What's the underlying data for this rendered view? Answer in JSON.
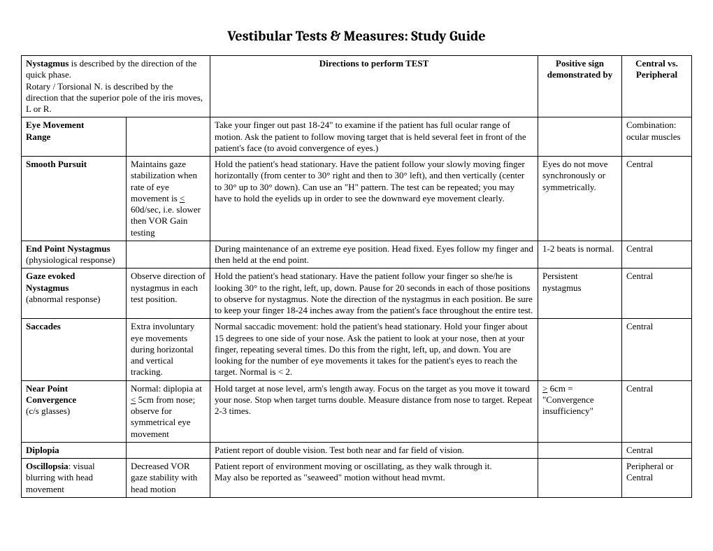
{
  "title": "Vestibular Tests & Measures: Study Guide",
  "header": {
    "nystagmus_desc_1a": "Nystagmus",
    "nystagmus_desc_1b": " is described by the direction of the quick phase.",
    "nystagmus_desc_2": "Rotary / Torsional N. is described by the direction that the superior pole of the iris moves, L or R.",
    "directions": "Directions to perform TEST",
    "positive1": "Positive sign",
    "positive2": "demonstrated by",
    "central1": "Central vs.",
    "central2": "Peripheral"
  },
  "rows": {
    "r1": {
      "name1": "Eye Movement",
      "name2": "Range",
      "desc": "",
      "dir": "Take your finger out past 18-24\" to examine if the patient has full ocular range of motion.  Ask the patient to follow moving target that is held several feet in front of the patient's face (to avoid convergence of eyes.)",
      "pos": "",
      "cp": "Combination: ocular muscles"
    },
    "r2": {
      "name": "Smooth Pursuit",
      "desc1": "Maintains gaze stabilization when rate of eye movement is ",
      "desc_u": "<",
      "desc2": " 60d/sec, i.e. slower then VOR Gain testing",
      "dir": "Hold the patient's head stationary.  Have the patient follow your slowly moving finger horizontally (from center to 30° right and then to 30° left), and then vertically (center to 30° up to 30° down).  Can use an \"H\" pattern. The test can be repeated; you may have to hold the eyelids up in order to see the downward eye movement clearly.",
      "pos": "Eyes do not move synchronously or symmetrically.",
      "cp": "Central"
    },
    "r3": {
      "name": "End Point Nystagmus",
      "sub": "(physiological response)",
      "desc": "",
      "dir": "During maintenance of an extreme eye position.  Head fixed.  Eyes follow my finger and then held at the end point.",
      "pos": "1-2 beats is normal.",
      "cp": "Central"
    },
    "r4": {
      "name1": "Gaze evoked",
      "name2": "Nystagmus",
      "sub": "(abnormal response)",
      "desc": "Observe direction of nystagmus in each test position.",
      "dir": "Hold the patient's head stationary.  Have the patient follow your finger so she/he is looking 30° to the right, left, up, down.  Pause for 20 seconds in each of those positions to observe for nystagmus.  Note the direction of the nystagmus in each position.  Be sure to keep your finger 18-24 inches away from the patient's face throughout the entire test.",
      "pos": "Persistent nystagmus",
      "cp": "Central"
    },
    "r5": {
      "name": "Saccades",
      "desc": "Extra involuntary eye movements during horizontal and vertical tracking.",
      "dir": "Normal saccadic movement: hold the patient's head stationary.  Hold your finger about 15 degrees to one side of your nose.  Ask the patient to look at your nose, then at your finger, repeating several times.  Do this from the right, left, up, and down. You are looking for the number of eye movements it takes for the patient's eyes to reach the target.  Normal is < 2.",
      "pos": "",
      "cp": "Central"
    },
    "r6": {
      "name1": "Near Point",
      "name2": "Convergence",
      "sub": "(c/s glasses)",
      "desc1": "Normal: diplopia at ",
      "desc_u": "<",
      "desc2": " 5cm from nose; observe for symmetrical eye movement",
      "dir": "Hold target at nose level, arm's length away.  Focus on the target as you move it toward your nose.  Stop when target turns double. Measure distance from nose to target. Repeat 2-3 times.",
      "pos_u": ">",
      "pos1": " 6cm = \"Convergence insufficiency\"",
      "cp": "Central"
    },
    "r7": {
      "name": "Diplopia",
      "desc": "",
      "dir": "Patient report of double vision.  Test both near and far field of vision.",
      "pos": "",
      "cp": "Central"
    },
    "r8": {
      "name": "Oscillopsia",
      "name_rest": ": visual blurring with head movement",
      "desc": "Decreased VOR gaze stability with head motion",
      "dir1": "Patient report of environment moving or oscillating, as they walk through it.",
      "dir2": "May also be reported as \"seaweed\" motion without head mvmt.",
      "pos": "",
      "cp": "Peripheral or Central"
    }
  }
}
